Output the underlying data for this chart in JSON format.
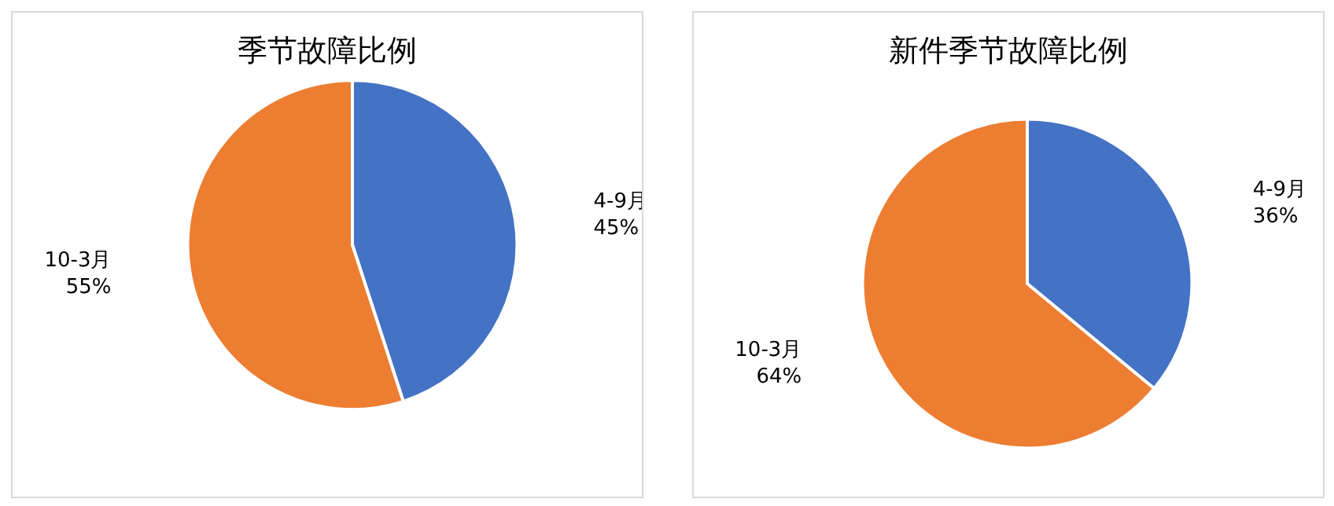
{
  "chart_data": [
    {
      "type": "pie",
      "title": "季节故障比例",
      "categories": [
        "4-9月",
        "10-3月"
      ],
      "values": [
        45,
        55
      ],
      "colors": [
        "#4472c4",
        "#ed7d31"
      ],
      "value_labels": [
        "45%",
        "55%"
      ],
      "legend": false
    },
    {
      "type": "pie",
      "title": "新件季节故障比例",
      "categories": [
        "4-9月",
        "10-3月"
      ],
      "values": [
        36,
        64
      ],
      "colors": [
        "#4472c4",
        "#ed7d31"
      ],
      "value_labels": [
        "36%",
        "64%"
      ],
      "legend": false
    }
  ]
}
